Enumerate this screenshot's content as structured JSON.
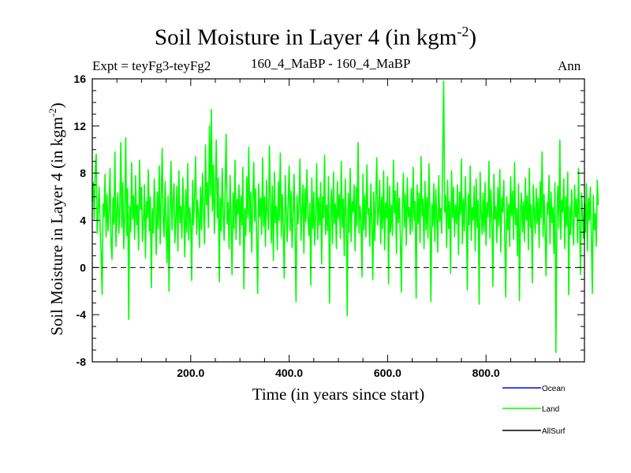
{
  "chart_data": {
    "type": "line",
    "title": "Soil Moisture in Layer 4 (in kgm",
    "title_exponent": "-2",
    "title_close": ")",
    "subtitle_left": "Expt = teyFg3-teyFg2",
    "subtitle_center": "160_4_MaBP - 160_4_MaBP",
    "subtitle_right": "Ann",
    "xlabel": "Time (in years since start)",
    "ylabel": "Soil Moisture in Layer 4 (in kgm",
    "ylabel_exponent": "-2",
    "ylabel_close": ")",
    "xlim": [
      0,
      1000
    ],
    "ylim": [
      -8,
      16
    ],
    "xticks": [
      200,
      400,
      600,
      800
    ],
    "xtick_labels": [
      "200.0",
      "400.0",
      "600.0",
      "800.0"
    ],
    "yticks": [
      -8,
      -4,
      0,
      4,
      8,
      12,
      16
    ],
    "ytick_labels": [
      "-8",
      "-4",
      "0",
      "4",
      "8",
      "12",
      "16"
    ],
    "reference_line": 0,
    "legend": [
      {
        "name": "Ocean",
        "color": "#0000ff"
      },
      {
        "name": "Land",
        "color": "#00ff00"
      },
      {
        "name": "AllSurf",
        "color": "#000000"
      }
    ],
    "series": [
      {
        "name": "Land",
        "color": "#00ff00",
        "x_start": 0,
        "x_step": 2,
        "values": [
          5.6,
          7.2,
          4.1,
          8.5,
          9.6,
          2.9,
          5.0,
          6.8,
          3.3,
          1.2,
          -2.3,
          5.4,
          4.3,
          7.9,
          2.6,
          6.2,
          3.1,
          4.8,
          8.4,
          2.2,
          0.7,
          5.9,
          3.7,
          9.8,
          1.8,
          4.6,
          6.3,
          2.9,
          5.1,
          10.6,
          3.4,
          7.2,
          1.6,
          4.4,
          11.0,
          2.7,
          6.7,
          -4.4,
          5.2,
          3.0,
          8.9,
          4.1,
          6.1,
          2.4,
          7.8,
          3.6,
          5.3,
          1.5,
          9.1,
          4.9,
          6.8,
          2.2,
          3.9,
          7.0,
          0.8,
          5.6,
          4.2,
          8.3,
          3.1,
          6.0,
          -1.7,
          5.0,
          2.9,
          7.5,
          4.6,
          1.1,
          6.4,
          3.3,
          8.6,
          2.0,
          5.8,
          10.1,
          4.0,
          2.6,
          7.3,
          3.5,
          0.4,
          6.1,
          -2.0,
          4.7,
          9.0,
          3.2,
          5.5,
          7.1,
          2.1,
          4.3,
          6.9,
          1.4,
          8.2,
          3.8,
          5.2,
          2.5,
          7.6,
          4.5,
          0.9,
          6.6,
          3.0,
          8.8,
          2.3,
          5.1,
          4.0,
          -1.1,
          7.4,
          3.6,
          6.2,
          9.4,
          2.8,
          5.7,
          4.4,
          1.7,
          6.8,
          3.2,
          8.0,
          4.9,
          2.0,
          10.4,
          5.3,
          7.2,
          3.4,
          12.0,
          6.1,
          13.4,
          4.8,
          8.7,
          2.9,
          6.5,
          10.8,
          4.2,
          7.6,
          -1.2,
          5.9,
          3.1,
          8.4,
          4.6,
          2.3,
          6.9,
          11.3,
          3.7,
          5.5,
          1.6,
          7.8,
          4.1,
          -0.6,
          6.3,
          3.3,
          9.1,
          2.4,
          5.8,
          4.5,
          7.0,
          1.9,
          6.1,
          3.6,
          8.5,
          -1.8,
          5.0,
          2.7,
          7.7,
          4.2,
          10.2,
          3.0,
          6.4,
          1.3,
          5.6,
          8.9,
          3.9,
          6.7,
          2.5,
          -2.2,
          7.1,
          4.3,
          5.9,
          2.8,
          9.3,
          3.5,
          6.0,
          1.8,
          7.4,
          4.7,
          3.2,
          10.3,
          5.4,
          2.1,
          6.9,
          0.6,
          8.1,
          3.8,
          5.2,
          1.5,
          7.3,
          4.0,
          9.7,
          2.6,
          6.2,
          3.4,
          -0.9,
          7.8,
          4.9,
          2.2,
          5.7,
          8.6,
          3.1,
          6.5,
          1.7,
          4.4,
          7.9,
          2.9,
          -2.9,
          6.1,
          3.7,
          5.1,
          9.2,
          2.3,
          4.8,
          7.0,
          1.2,
          6.7,
          3.9,
          8.3,
          4.5,
          2.7,
          5.5,
          -1.5,
          7.6,
          3.3,
          6.4,
          1.9,
          4.6,
          8.8,
          2.4,
          5.9,
          3.6,
          7.2,
          0.3,
          6.0,
          4.2,
          9.5,
          2.8,
          5.3,
          3.1,
          7.7,
          -3.0,
          4.9,
          6.6,
          2.0,
          8.1,
          3.7,
          5.4,
          1.6,
          7.3,
          4.1,
          6.2,
          2.5,
          9.0,
          3.4,
          5.8,
          1.0,
          7.5,
          4.4,
          -4.1,
          6.3,
          3.0,
          8.4,
          2.2,
          5.6,
          4.7,
          7.0,
          1.4,
          6.8,
          3.5,
          10.6,
          2.9,
          5.2,
          4.0,
          -0.8,
          7.9,
          3.2,
          6.1,
          2.6,
          8.7,
          4.5,
          5.0,
          1.8,
          7.1,
          3.9,
          -1.0,
          6.4,
          2.3,
          5.7,
          9.3,
          3.6,
          4.8,
          7.4,
          2.0,
          6.0,
          3.3,
          8.2,
          1.5,
          5.5,
          4.2,
          7.7,
          -1.4,
          6.9,
          3.0,
          5.3,
          2.7,
          9.1,
          4.6,
          6.5,
          1.2,
          7.2,
          3.8,
          5.9,
          2.4,
          -2.1,
          4.9,
          8.0,
          3.4,
          6.2,
          1.9,
          7.6,
          4.3,
          5.1,
          2.8,
          6.7,
          3.1,
          8.5,
          4.0,
          5.6,
          -2.6,
          7.0,
          3.7,
          6.3,
          2.1,
          9.4,
          4.4,
          5.8,
          1.6,
          7.3,
          3.2,
          6.0,
          2.5,
          8.8,
          4.8,
          -2.9,
          5.4,
          3.5,
          7.1,
          2.2,
          6.6,
          4.1,
          1.3,
          7.8,
          3.9,
          5.0,
          2.9,
          9.7,
          15.8,
          4.7,
          6.1,
          1.7,
          7.4,
          3.3,
          5.6,
          -0.5,
          8.2,
          4.2,
          6.8,
          2.6,
          5.3,
          3.7,
          7.0,
          1.1,
          6.4,
          4.5,
          9.2,
          2.0,
          5.8,
          3.1,
          7.7,
          4.9,
          -1.9,
          6.2,
          3.6,
          8.6,
          2.3,
          5.1,
          4.0,
          6.9,
          1.4,
          7.5,
          3.4,
          5.7,
          -3.1,
          8.1,
          4.6,
          2.8,
          6.3,
          3.0,
          7.2,
          1.9,
          5.5,
          4.3,
          9.0,
          2.5,
          6.6,
          3.8,
          -1.6,
          7.9,
          4.1,
          5.2,
          2.1,
          6.8,
          3.5,
          8.3,
          1.3,
          5.9,
          4.7,
          7.4,
          2.7,
          -2.5,
          6.0,
          3.2,
          5.4,
          1.8,
          7.7,
          4.4,
          6.5,
          2.4,
          8.9,
          3.6,
          5.0,
          1.0,
          7.1,
          -2.8,
          4.8,
          6.3,
          3.0,
          5.6,
          2.2,
          7.6,
          4.0,
          6.1,
          1.5,
          8.4,
          3.4,
          5.3,
          -1.3,
          7.0,
          4.6,
          2.9,
          6.7,
          3.7,
          5.9,
          1.7,
          7.3,
          4.2,
          9.8,
          2.6,
          6.2,
          3.1,
          -0.7,
          5.5,
          4.5,
          7.8,
          2.0,
          6.4,
          3.8,
          5.1,
          1.2,
          7.2,
          -7.2,
          4.1,
          6.9,
          3.3,
          10.8,
          2.4,
          5.7,
          4.7,
          7.5,
          1.6,
          6.0,
          3.5,
          8.1,
          -2.3,
          5.2,
          2.8,
          6.6,
          3.9,
          1.9,
          7.0,
          4.3,
          5.8,
          2.1,
          8.4,
          3.6,
          -0.6,
          6.3,
          4.8,
          2.5,
          5.4,
          3.0,
          7.1,
          1.4,
          5.9,
          4.0,
          6.8,
          2.7,
          -2.2,
          6.1,
          3.2,
          4.6,
          1.8,
          7.4,
          5.3
        ]
      }
    ]
  }
}
